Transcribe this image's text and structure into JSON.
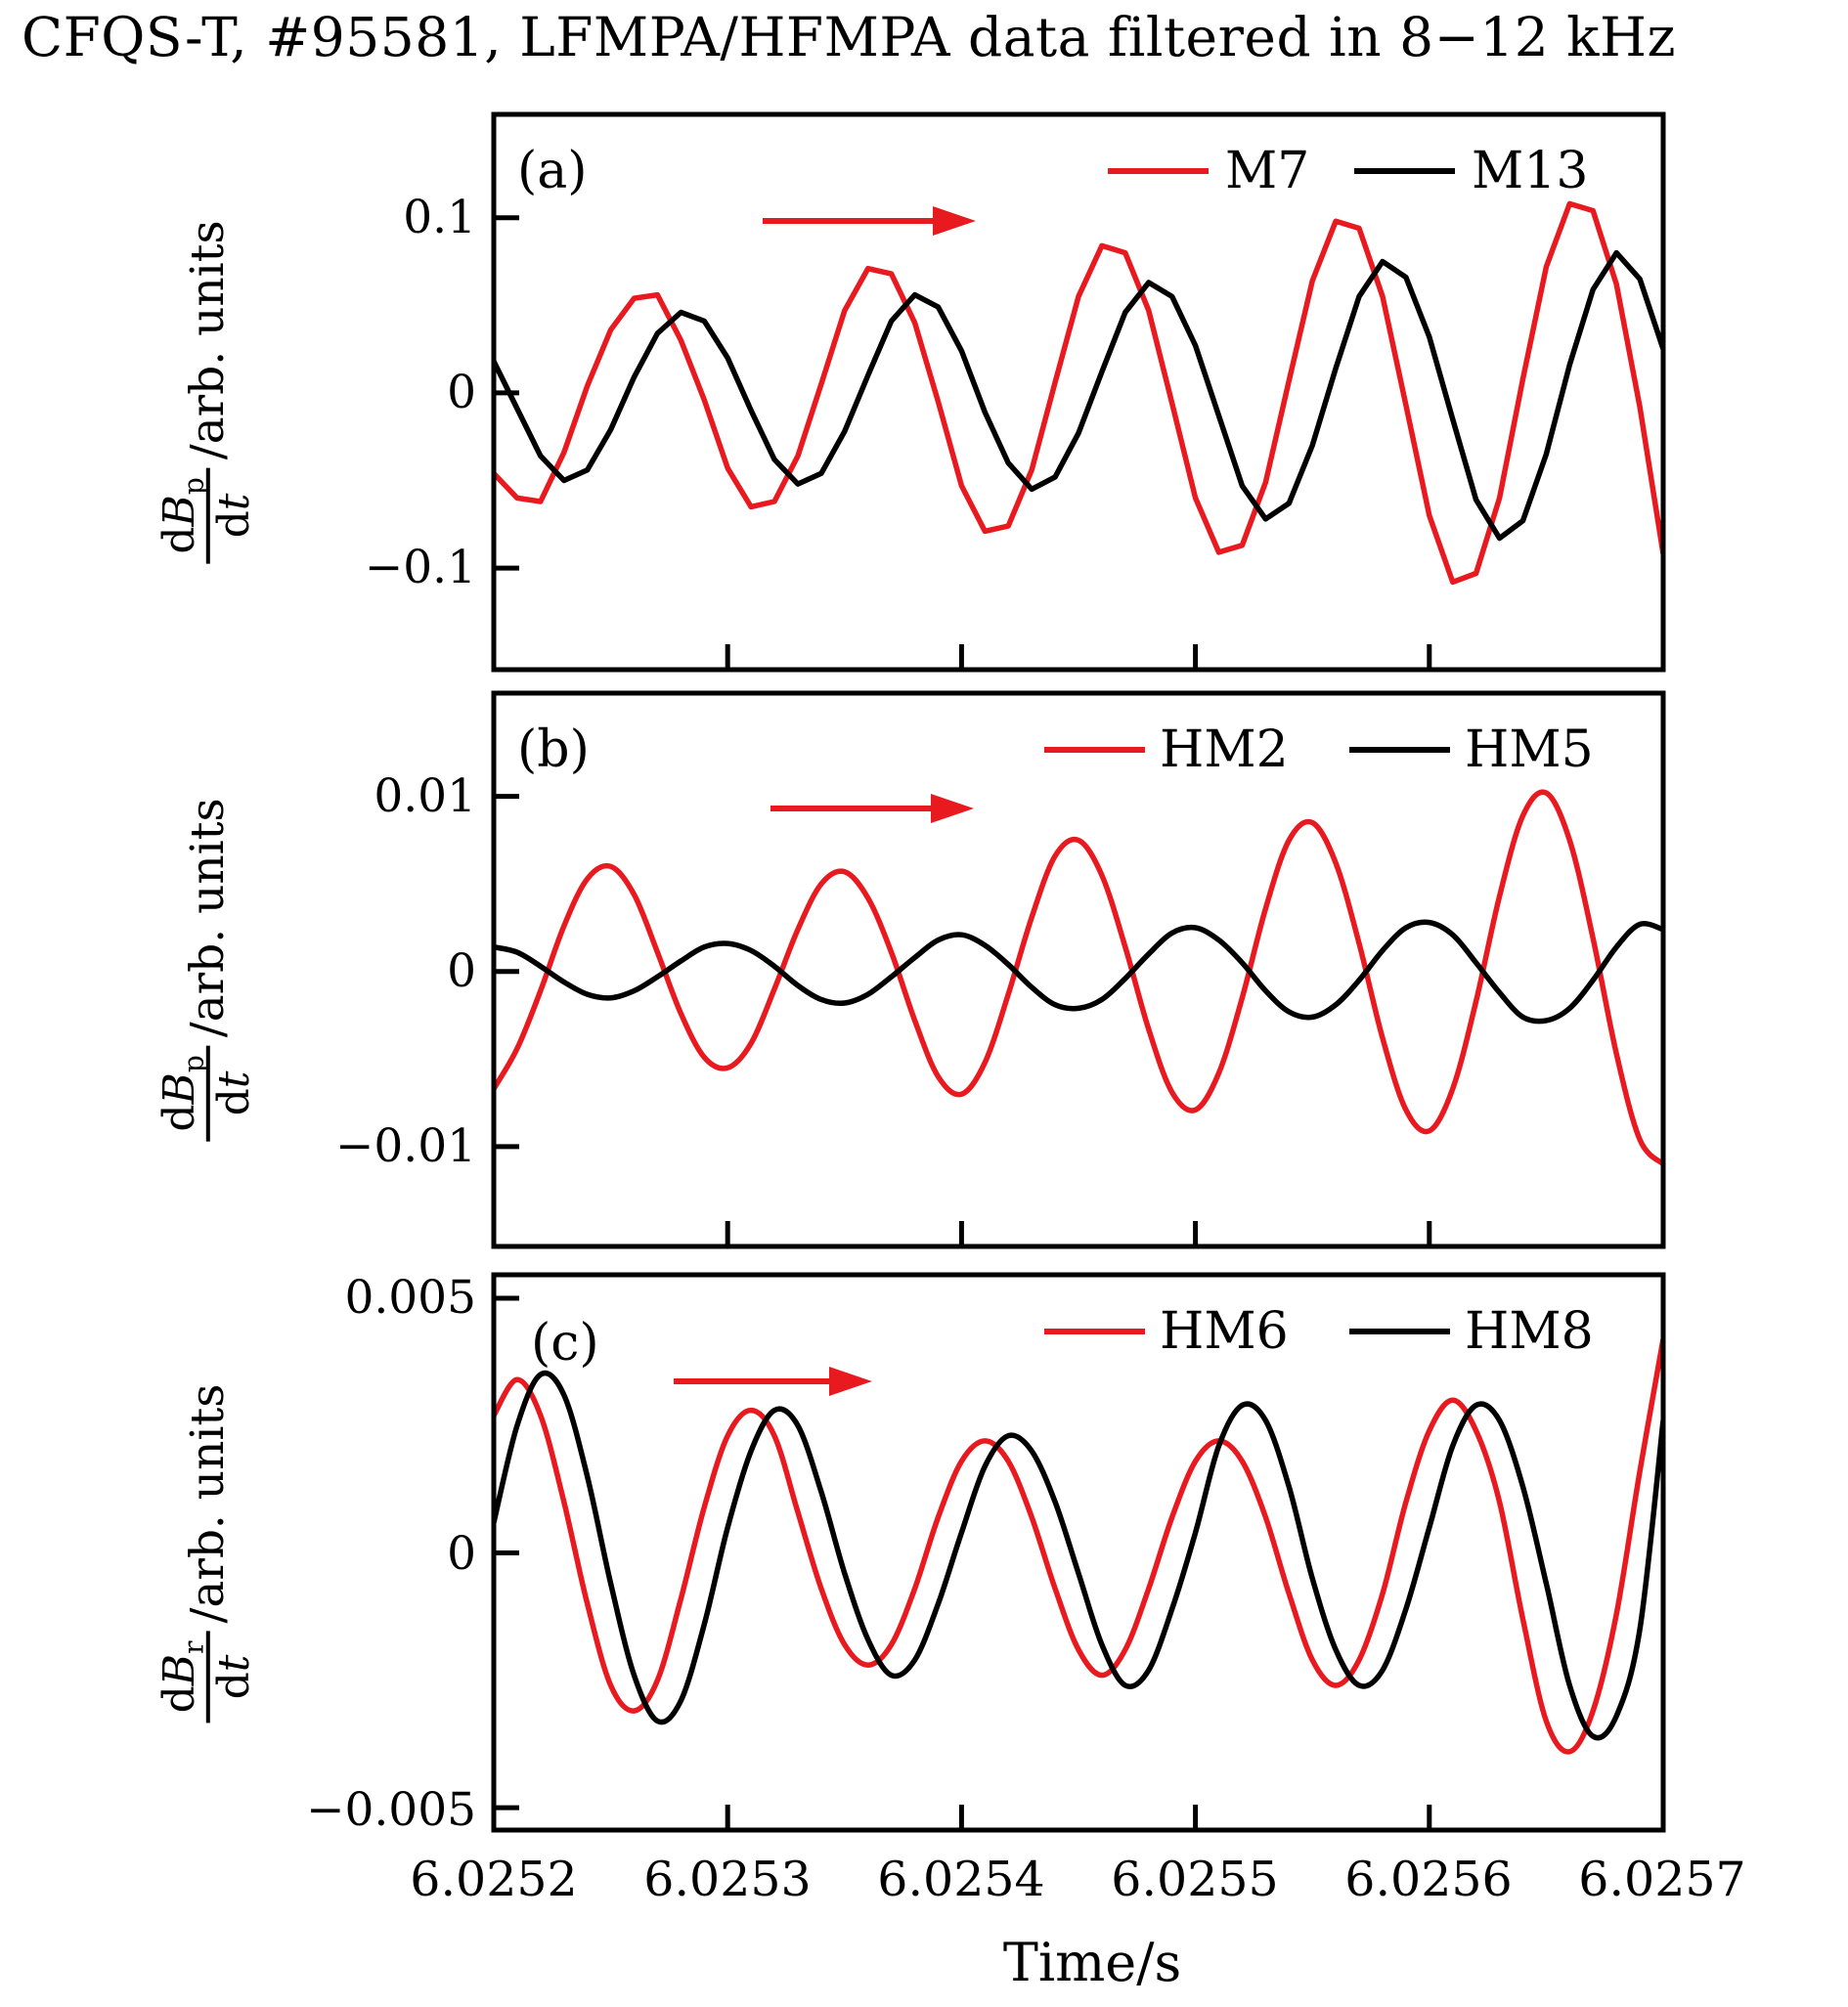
{
  "title": "CFQS-T, #95581, LFMPA/HFMPA data filtered in 8−12 kHz",
  "colors": {
    "arrow": "#e8191f",
    "axis": "#000000",
    "series_red": "#e8191f",
    "series_black": "#000000"
  },
  "x_axis": {
    "label": "Time/s",
    "min": 6.0252,
    "max": 6.0257,
    "tick_values": [
      6.0252,
      6.0253,
      6.0254,
      6.0255,
      6.0256,
      6.0257
    ],
    "tick_labels": [
      "6.0252",
      "6.0253",
      "6.0254",
      "6.0255",
      "6.0256",
      "6.0257"
    ]
  },
  "panels": [
    {
      "id": "a",
      "letter": "(a)",
      "yticks": [
        {
          "label": "0.1",
          "v": 0.1
        },
        {
          "label": "0",
          "v": 0
        },
        {
          "label": "−0.1",
          "v": -0.1
        }
      ],
      "ylabel": {
        "d1": "d",
        "B": "B",
        "sub": "p",
        "d2": "d",
        "t": "t",
        "suffix": "/arb. units"
      }
    },
    {
      "id": "b",
      "letter": "(b)",
      "yticks": [
        {
          "label": "0.01",
          "v": 0.01
        },
        {
          "label": "0",
          "v": 0
        },
        {
          "label": "−0.01",
          "v": -0.01
        }
      ],
      "ylabel": {
        "d1": "d",
        "B": "B",
        "sub": "p",
        "d2": "d",
        "t": "t",
        "suffix": "/arb. units"
      }
    },
    {
      "id": "c",
      "letter": "(c)",
      "yticks": [
        {
          "label": "0.005",
          "v": 0.005
        },
        {
          "label": "0",
          "v": 0
        },
        {
          "label": "−0.005",
          "v": -0.005
        }
      ],
      "ylabel": {
        "d1": "d",
        "B": "B",
        "sub": "r",
        "d2": "d",
        "t": "t",
        "suffix": "/arb. units"
      }
    }
  ],
  "chart_data": [
    {
      "type": "line",
      "panel": "a",
      "panel_label": "(a)",
      "xlabel": "Time/s",
      "ylabel": "dBp/dt (arb. units)",
      "xlim": [
        6.0252,
        6.0257
      ],
      "ylim": [
        -0.158,
        0.159
      ],
      "x_start": 6.0252,
      "x_step": 1e-05,
      "grid": false,
      "legend_position": "top-right-inside",
      "series": [
        {
          "name": "M7",
          "color": "#e8191f",
          "interp": "linear",
          "values": [
            -0.046,
            -0.06,
            -0.062,
            -0.034,
            0.004,
            0.036,
            0.054,
            0.056,
            0.03,
            -0.004,
            -0.043,
            -0.065,
            -0.062,
            -0.036,
            0.005,
            0.047,
            0.071,
            0.068,
            0.04,
            -0.005,
            -0.053,
            -0.079,
            -0.076,
            -0.044,
            0.006,
            0.055,
            0.084,
            0.08,
            0.047,
            -0.006,
            -0.06,
            -0.091,
            -0.087,
            -0.051,
            0.007,
            0.064,
            0.098,
            0.094,
            0.055,
            -0.007,
            -0.07,
            -0.108,
            -0.103,
            -0.06,
            0.008,
            0.072,
            0.108,
            0.104,
            0.062,
            -0.008,
            -0.092
          ]
        },
        {
          "name": "M13",
          "color": "#000000",
          "interp": "linear",
          "values": [
            0.018,
            -0.009,
            -0.036,
            -0.05,
            -0.044,
            -0.021,
            0.009,
            0.034,
            0.046,
            0.041,
            0.02,
            -0.01,
            -0.038,
            -0.052,
            -0.046,
            -0.022,
            0.01,
            0.041,
            0.056,
            0.049,
            0.024,
            -0.011,
            -0.04,
            -0.055,
            -0.048,
            -0.023,
            0.012,
            0.046,
            0.063,
            0.055,
            0.027,
            -0.013,
            -0.053,
            -0.072,
            -0.063,
            -0.03,
            0.014,
            0.055,
            0.075,
            0.066,
            0.032,
            -0.015,
            -0.061,
            -0.083,
            -0.073,
            -0.035,
            0.016,
            0.059,
            0.08,
            0.065,
            0.025
          ]
        }
      ]
    },
    {
      "type": "line",
      "panel": "b",
      "panel_label": "(b)",
      "xlabel": "Time/s",
      "ylabel": "dBp/dt (arb. units)",
      "xlim": [
        6.0252,
        6.0257
      ],
      "ylim": [
        -0.0157,
        0.0159
      ],
      "x_start": 6.0252,
      "x_step": 1e-05,
      "grid": false,
      "legend_position": "top-right-inside",
      "series": [
        {
          "name": "HM2",
          "color": "#e8191f",
          "interp": "smooth",
          "values": [
            -0.0067,
            -0.0044,
            -0.0011,
            0.0026,
            0.0053,
            0.006,
            0.0044,
            0.0011,
            -0.0024,
            -0.0049,
            -0.0055,
            -0.0041,
            -0.001,
            0.0024,
            0.005,
            0.0057,
            0.0042,
            0.0011,
            -0.0028,
            -0.006,
            -0.007,
            -0.0052,
            -0.0013,
            0.0031,
            0.0066,
            0.0075,
            0.0055,
            0.0014,
            -0.0033,
            -0.0069,
            -0.0079,
            -0.0058,
            -0.0015,
            0.0036,
            0.0075,
            0.0085,
            0.0062,
            0.0016,
            -0.0038,
            -0.0079,
            -0.0091,
            -0.0067,
            -0.0017,
            0.0043,
            0.0089,
            0.0102,
            0.0075,
            0.0019,
            -0.0047,
            -0.0096,
            -0.011
          ]
        },
        {
          "name": "HM5",
          "color": "#000000",
          "interp": "smooth",
          "values": [
            0.0014,
            0.0011,
            0.0003,
            -0.0006,
            -0.0013,
            -0.0015,
            -0.0011,
            -0.0003,
            0.0006,
            0.0014,
            0.0016,
            0.0012,
            0.0003,
            -0.0008,
            -0.0016,
            -0.0018,
            -0.0013,
            -0.0003,
            0.0008,
            0.0018,
            0.0021,
            0.0015,
            0.0004,
            -0.0009,
            -0.0019,
            -0.0021,
            -0.0016,
            -0.0004,
            0.001,
            0.0022,
            0.0025,
            0.0018,
            0.0005,
            -0.0011,
            -0.0023,
            -0.0026,
            -0.0019,
            -0.0005,
            0.0012,
            0.0025,
            0.0028,
            0.0021,
            0.0005,
            -0.0012,
            -0.0026,
            -0.0028,
            -0.0021,
            -0.0005,
            0.0014,
            0.0027,
            0.0024
          ]
        }
      ]
    },
    {
      "type": "line",
      "panel": "c",
      "panel_label": "(c)",
      "xlabel": "Time/s",
      "ylabel": "dBr/dt (arb. units)",
      "xlim": [
        6.0252,
        6.0257
      ],
      "ylim": [
        -0.00544,
        0.00546
      ],
      "x_start": 6.0252,
      "x_step": 1e-05,
      "grid": false,
      "legend_position": "top-right-inside",
      "series": [
        {
          "name": "HM6",
          "color": "#e8191f",
          "interp": "smooth",
          "values": [
            0.0027,
            0.0034,
            0.0027,
            0.001,
            -0.001,
            -0.0026,
            -0.0031,
            -0.0025,
            -0.0009,
            0.0009,
            0.0023,
            0.0028,
            0.0023,
            0.0008,
            -0.0007,
            -0.0018,
            -0.0022,
            -0.0018,
            -0.0007,
            0.0007,
            0.0018,
            0.0022,
            0.0018,
            0.0007,
            -0.0007,
            -0.0019,
            -0.0024,
            -0.0019,
            -0.0007,
            0.0007,
            0.0018,
            0.0022,
            0.0018,
            0.0007,
            -0.0008,
            -0.0021,
            -0.0026,
            -0.0021,
            -0.0008,
            0.001,
            0.0024,
            0.003,
            0.0024,
            0.001,
            -0.0013,
            -0.0033,
            -0.0039,
            -0.0031,
            -0.0012,
            0.0016,
            0.0042
          ]
        },
        {
          "name": "HM8",
          "color": "#000000",
          "interp": "smooth",
          "values": [
            0.0006,
            0.0025,
            0.0035,
            0.0031,
            0.0015,
            -0.0006,
            -0.0024,
            -0.0033,
            -0.0029,
            -0.0014,
            0.0005,
            0.002,
            0.0028,
            0.0025,
            0.0012,
            -0.0004,
            -0.0017,
            -0.0024,
            -0.0021,
            -0.001,
            0.0004,
            0.0017,
            0.0023,
            0.002,
            0.001,
            -0.0004,
            -0.0018,
            -0.0026,
            -0.0023,
            -0.0011,
            0.0004,
            0.0021,
            0.0029,
            0.0026,
            0.0013,
            -0.0005,
            -0.0019,
            -0.0026,
            -0.0023,
            -0.0011,
            0.0005,
            0.0021,
            0.0029,
            0.0026,
            0.0013,
            -0.0006,
            -0.0026,
            -0.0036,
            -0.0032,
            -0.0015,
            0.0026
          ]
        }
      ]
    }
  ]
}
